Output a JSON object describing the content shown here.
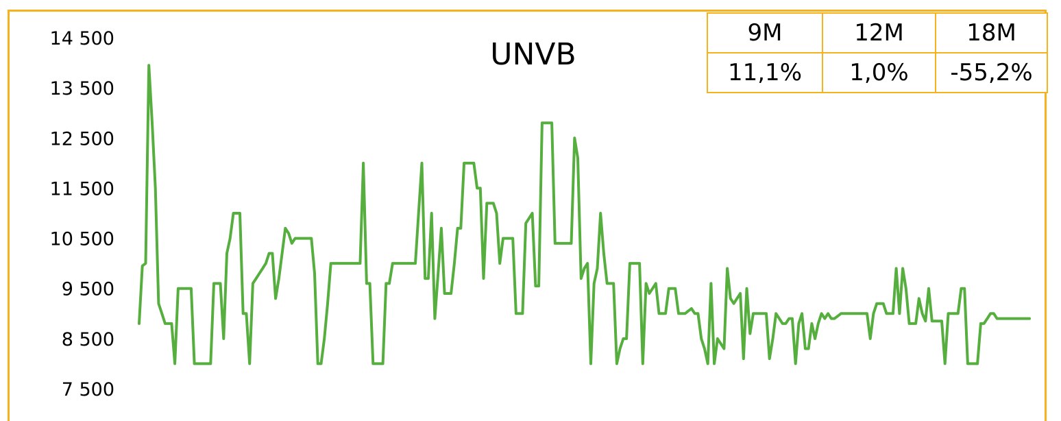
{
  "chart_data": {
    "type": "line",
    "title": "UNVB",
    "xlabel": "",
    "ylabel": "",
    "ylim": [
      7500,
      14500
    ],
    "yticks": [
      14500,
      13500,
      12500,
      11500,
      10500,
      9500,
      8500,
      7500
    ],
    "ytick_labels": [
      "14 500",
      "13 500",
      "12 500",
      "11 500",
      "10 500",
      "9 500",
      "8 500",
      "7 500"
    ],
    "grid": false,
    "line_color": "#56AE3F",
    "frame_color": "#F5B21C",
    "series": [
      {
        "values": [
          8800,
          9950,
          10000,
          13950,
          12800,
          11500,
          9200,
          9000,
          8800,
          8800,
          8800,
          8000,
          9500,
          9500,
          9500,
          9500,
          9500,
          8000,
          8000,
          8000,
          8000,
          8000,
          8000,
          9600,
          9600,
          9600,
          8500,
          10200,
          10500,
          11000,
          11000,
          11000,
          9000,
          9000,
          8000,
          9600,
          9700,
          9800,
          9900,
          10000,
          10200,
          10200,
          9300,
          9700,
          10200,
          10700,
          10600,
          10400,
          10500,
          10500,
          10500,
          10500,
          10500,
          10500,
          9800,
          8000,
          8000,
          8500,
          9200,
          10000,
          10000,
          10000,
          10000,
          10000,
          10000,
          10000,
          10000,
          10000,
          10000,
          12000,
          9600,
          9600,
          8000,
          8000,
          8000,
          8000,
          9600,
          9600,
          10000,
          10000,
          10000,
          10000,
          10000,
          10000,
          10000,
          10000,
          11000,
          12000,
          9700,
          9700,
          11000,
          8900,
          9800,
          10700,
          9400,
          9400,
          9400,
          10000,
          10700,
          10700,
          12000,
          12000,
          12000,
          12000,
          11500,
          11500,
          9700,
          11200,
          11200,
          11200,
          11000,
          10000,
          10500,
          10500,
          10500,
          10500,
          9000,
          9000,
          9000,
          10800,
          10900,
          11000,
          9550,
          9550,
          12800,
          12800,
          12800,
          12800,
          10400,
          10400,
          10400,
          10400,
          10400,
          10400,
          12500,
          12100,
          9700,
          9900,
          10000,
          8000,
          9600,
          9900,
          11000,
          10200,
          9600,
          9600,
          9600,
          8000,
          8300,
          8500,
          8500,
          10000,
          10000,
          10000,
          10000,
          8000,
          9600,
          9400,
          9500,
          9600,
          9000,
          9000,
          9000,
          9500,
          9500,
          9500,
          9000,
          9000,
          9000,
          9050,
          9100,
          9000,
          9000,
          8500,
          8300,
          8000,
          9600,
          8000,
          8500,
          8400,
          8300,
          9900,
          9300,
          9200,
          9300,
          9400,
          8100,
          9500,
          8600,
          9000,
          9000,
          9000,
          9000,
          9000,
          8100,
          8500,
          9000,
          8900,
          8800,
          8800,
          8900,
          8900,
          8000,
          8800,
          9000,
          8300,
          8300,
          8800,
          8500,
          8800,
          9000,
          8900,
          9000,
          8900,
          8900,
          8950,
          9000,
          9000,
          9000,
          9000,
          9000,
          9000,
          9000,
          9000,
          9000,
          8500,
          9000,
          9200,
          9200,
          9200,
          9000,
          9000,
          9000,
          9900,
          9000,
          9900,
          9500,
          8800,
          8800,
          8800,
          9300,
          9000,
          8850,
          9500,
          8850,
          8850,
          8850,
          8850,
          8000,
          9000,
          9000,
          9000,
          9000,
          9500,
          9500,
          8000,
          8000,
          8000,
          8000,
          8800,
          8800,
          8900,
          9000,
          9000,
          8900,
          8900,
          8900,
          8900,
          8900,
          8900,
          8900,
          8900,
          8900,
          8900,
          8900
        ]
      }
    ]
  },
  "performance_table": {
    "headers": [
      "9M",
      "12M",
      "18M"
    ],
    "values": [
      "11,1%",
      "1,0%",
      "-55,2%"
    ]
  }
}
